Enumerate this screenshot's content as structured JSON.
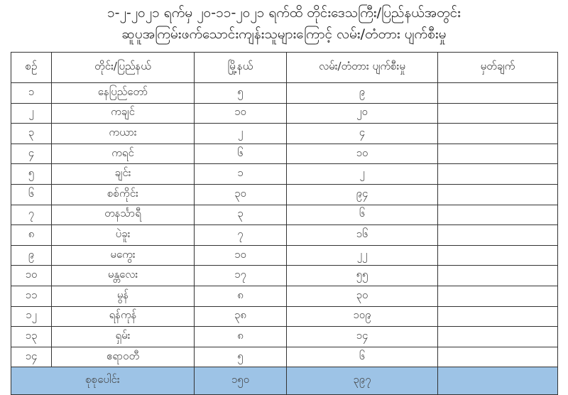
{
  "title": {
    "line1": "၁-၂-၂၀၂၁ ရက်မှ ၂၀-၁၁-၂၀၂၁ ရက်ထိ တိုင်းဒေသကြီး/ပြည်နယ်အတွင်း",
    "line2": "ဆူပူအကြမ်းဖက်သောင်းကျန်းသူများကြောင့် လမ်း/တံတား ပျက်စီးမှု"
  },
  "table": {
    "headers": [
      "စဉ်",
      "တိုင်း/ပြည်နယ်",
      "မြို့နယ်",
      "လမ်း/တံတား ပျက်စီးမှု",
      "မှတ်ချက်"
    ],
    "rows": [
      {
        "no": "၁",
        "region": "နေပြည်တော်",
        "townships": "၅",
        "damage": "၉",
        "remarks": ""
      },
      {
        "no": "၂",
        "region": "ကချင်",
        "townships": "၁၀",
        "damage": "၂၀",
        "remarks": ""
      },
      {
        "no": "၃",
        "region": "ကယား",
        "townships": "၂",
        "damage": "၄",
        "remarks": ""
      },
      {
        "no": "၄",
        "region": "ကရင်",
        "townships": "၆",
        "damage": "၁၀",
        "remarks": ""
      },
      {
        "no": "၅",
        "region": "ချင်း",
        "townships": "၁",
        "damage": "၂",
        "remarks": ""
      },
      {
        "no": "၆",
        "region": "စစ်ကိုင်း",
        "townships": "၃၀",
        "damage": "၉၄",
        "remarks": ""
      },
      {
        "no": "၇",
        "region": "တနင်္သာရီ",
        "townships": "၃",
        "damage": "၆",
        "remarks": ""
      },
      {
        "no": "၈",
        "region": "ပဲခူး",
        "townships": "၇",
        "damage": "၁၆",
        "remarks": ""
      },
      {
        "no": "၉",
        "region": "မကွေး",
        "townships": "၁၀",
        "damage": "၂၂",
        "remarks": ""
      },
      {
        "no": "၁၀",
        "region": "မန္တလေး",
        "townships": "၁၇",
        "damage": "၅၅",
        "remarks": ""
      },
      {
        "no": "၁၁",
        "region": "မွန်",
        "townships": "၈",
        "damage": "၃၀",
        "remarks": ""
      },
      {
        "no": "၁၂",
        "region": "ရန်ကုန်",
        "townships": "၃၈",
        "damage": "၁၀၉",
        "remarks": ""
      },
      {
        "no": "၁၃",
        "region": "ရှမ်း",
        "townships": "၈",
        "damage": "၁၄",
        "remarks": ""
      },
      {
        "no": "၁၄",
        "region": "ဧရာဝတီ",
        "townships": "၅",
        "damage": "၆",
        "remarks": ""
      }
    ],
    "total": {
      "label": "စုစုပေါင်း",
      "townships": "၁၅၀",
      "damage": "၃၉၇",
      "remarks": ""
    },
    "total_row_color": "#9dc3e6"
  }
}
